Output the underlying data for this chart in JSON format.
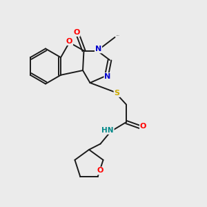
{
  "bg_color": "#ebebeb",
  "bond_color": "#1a1a1a",
  "figsize": [
    3.0,
    3.0
  ],
  "dpi": 100,
  "colors": {
    "O": "#ff0000",
    "N": "#0000cc",
    "S": "#ccaa00",
    "NH": "#008888",
    "C": "#1a1a1a"
  }
}
